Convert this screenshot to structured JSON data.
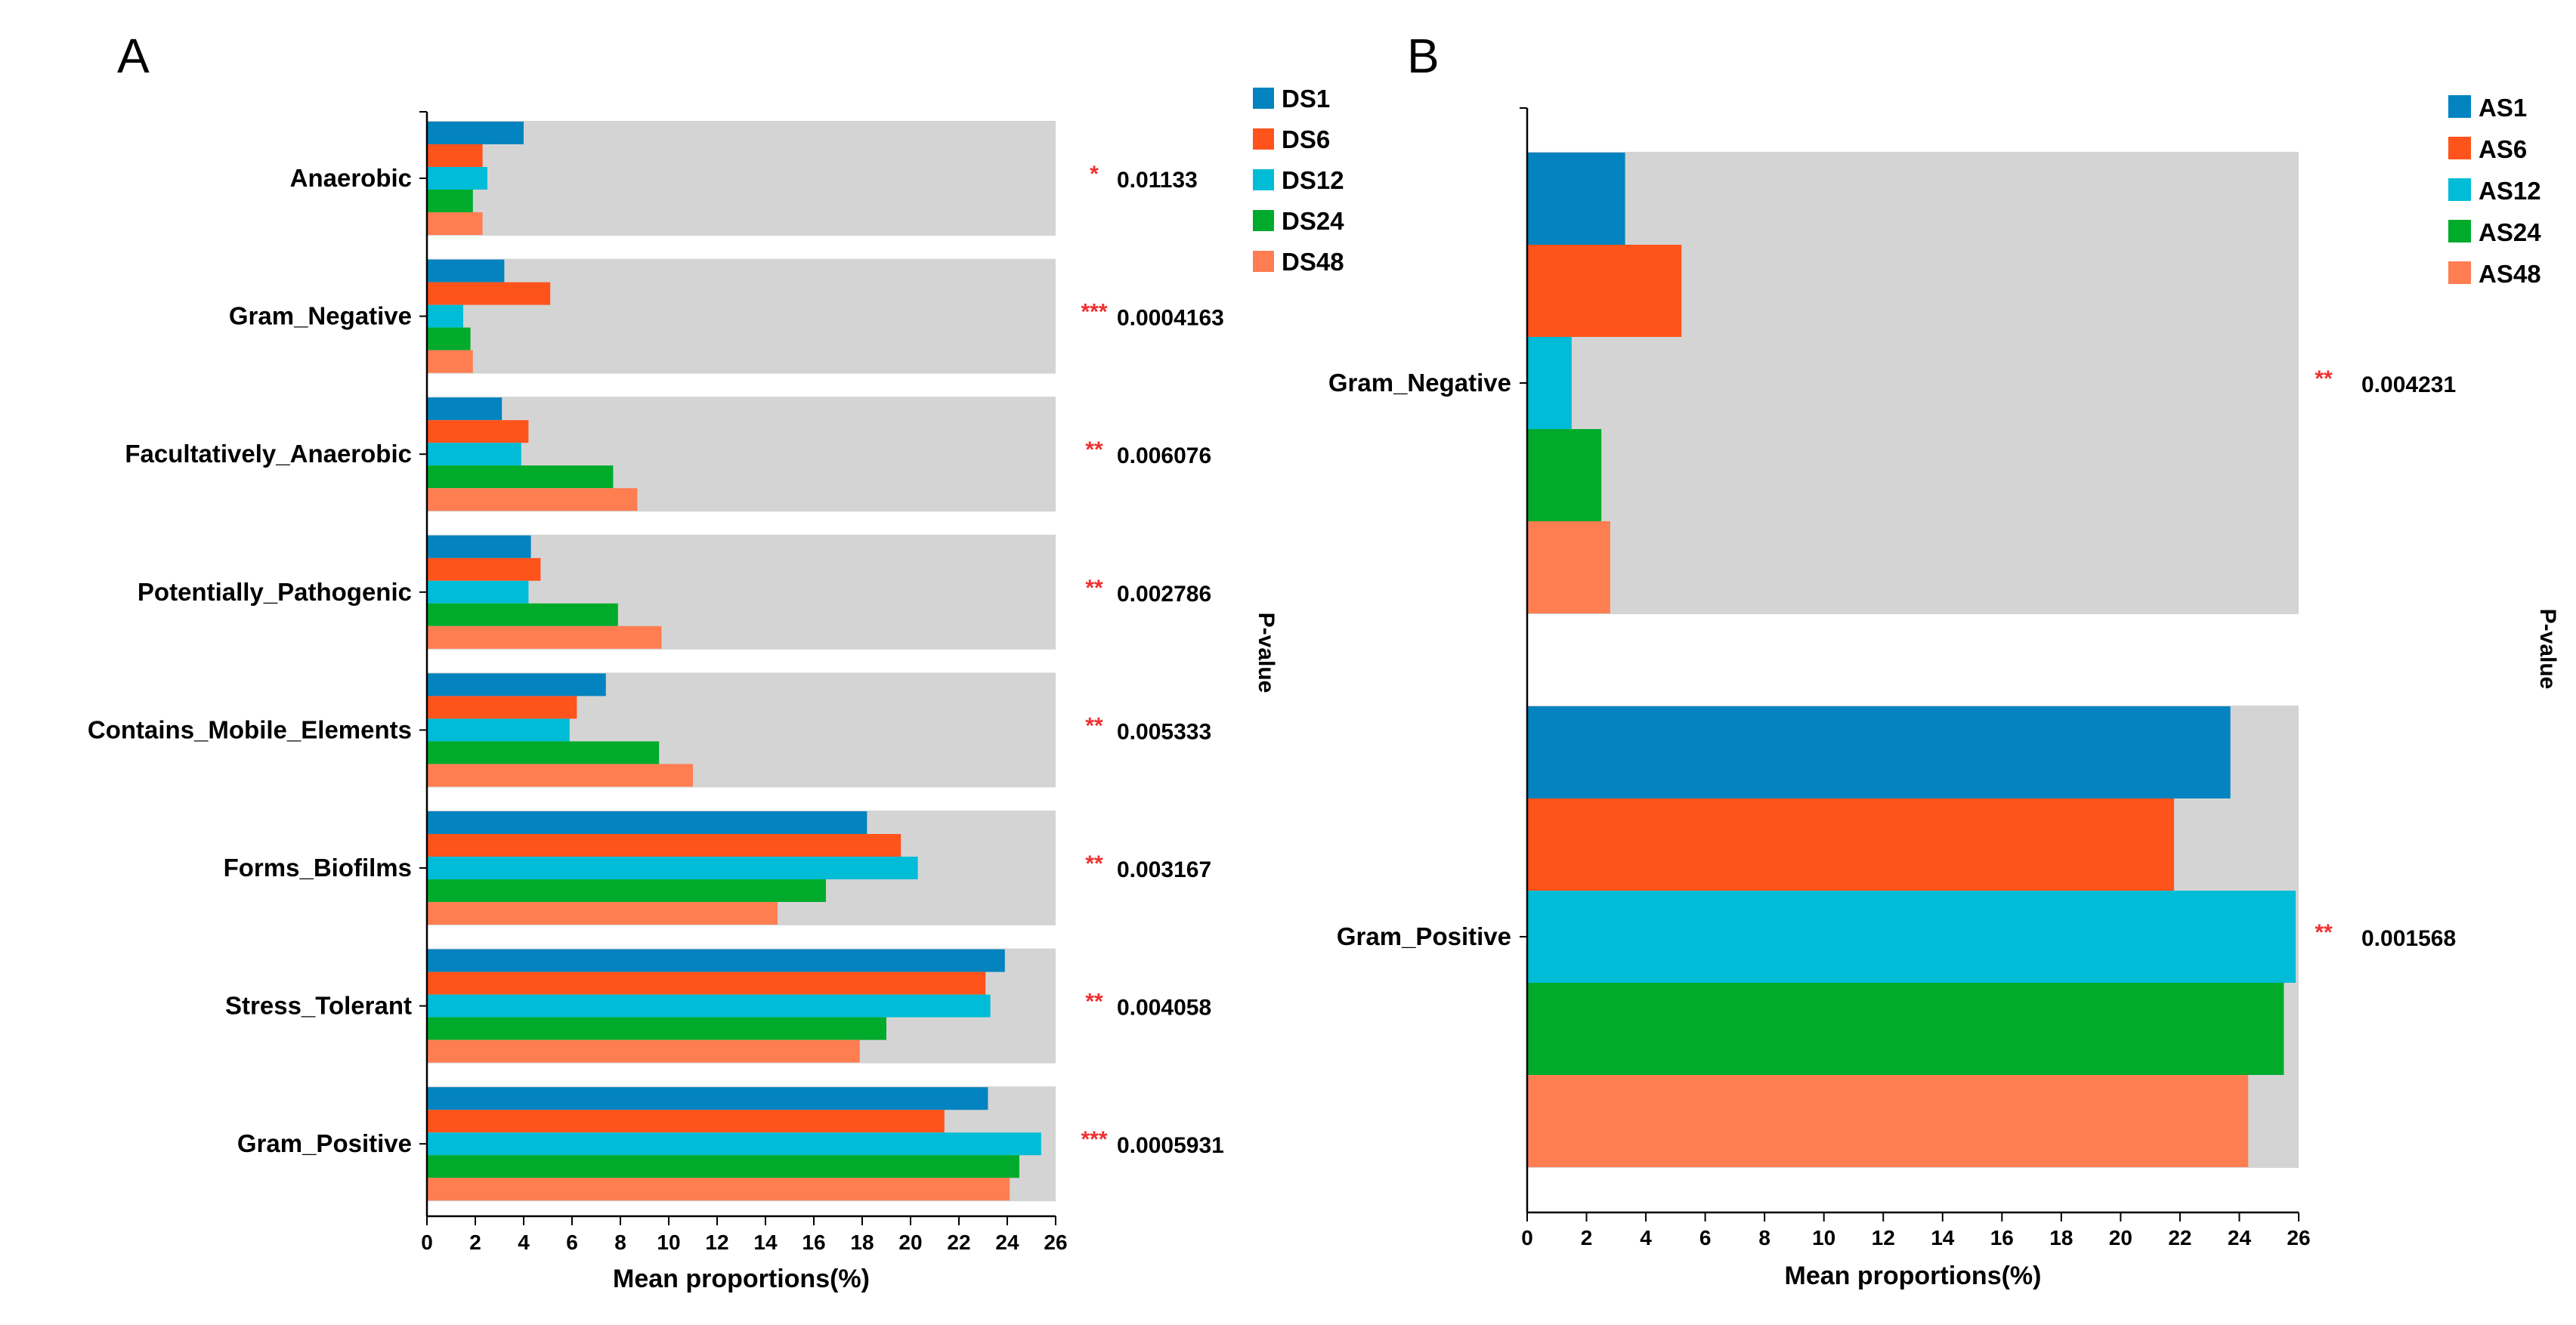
{
  "colors": {
    "series": [
      "#0383bf",
      "#fe531b",
      "#00bcd6",
      "#00ab2c",
      "#fe7e52"
    ],
    "background_band": "#d4d4d4",
    "stars": "#f03030"
  },
  "chart_data": [
    {
      "panel": "A",
      "type": "bar",
      "orientation": "horizontal",
      "xlabel": "Mean proportions(%)",
      "xlim": [
        0,
        26
      ],
      "xticks": [
        0,
        2,
        4,
        6,
        8,
        10,
        12,
        14,
        16,
        18,
        20,
        22,
        24,
        26
      ],
      "right_axis_label": "P-value",
      "legend_position": "top-right",
      "categories": [
        "Anaerobic",
        "Gram_Negative",
        "Facultatively_Anaerobic",
        "Potentially_Pathogenic",
        "Contains_Mobile_Elements",
        "Forms_Biofilms",
        "Stress_Tolerant",
        "Gram_Positive"
      ],
      "series": [
        {
          "name": "DS1",
          "values": [
            4.0,
            3.2,
            3.1,
            4.3,
            7.4,
            18.2,
            23.9,
            23.2
          ]
        },
        {
          "name": "DS6",
          "values": [
            2.3,
            5.1,
            4.2,
            4.7,
            6.2,
            19.6,
            23.1,
            21.4
          ]
        },
        {
          "name": "DS12",
          "values": [
            2.5,
            1.5,
            3.9,
            4.2,
            5.9,
            20.3,
            23.3,
            25.4
          ]
        },
        {
          "name": "DS24",
          "values": [
            1.9,
            1.8,
            7.7,
            7.9,
            9.6,
            16.5,
            19.0,
            24.5
          ]
        },
        {
          "name": "DS48",
          "values": [
            2.3,
            1.9,
            8.7,
            9.7,
            11.0,
            14.5,
            17.9,
            24.1
          ]
        }
      ],
      "significance": [
        "*",
        "***",
        "**",
        "**",
        "**",
        "**",
        "**",
        "***"
      ],
      "pvalues": [
        "0.01133",
        "0.0004163",
        "0.006076",
        "0.002786",
        "0.005333",
        "0.003167",
        "0.004058",
        "0.0005931"
      ]
    },
    {
      "panel": "B",
      "type": "bar",
      "orientation": "horizontal",
      "xlabel": "Mean proportions(%)",
      "xlim": [
        0,
        26
      ],
      "xticks": [
        0,
        2,
        4,
        6,
        8,
        10,
        12,
        14,
        16,
        18,
        20,
        22,
        24,
        26
      ],
      "right_axis_label": "P-value",
      "legend_position": "top-right",
      "categories": [
        "Gram_Negative",
        "Gram_Positive"
      ],
      "series": [
        {
          "name": "AS1",
          "values": [
            3.3,
            23.7
          ]
        },
        {
          "name": "AS6",
          "values": [
            5.2,
            21.8
          ]
        },
        {
          "name": "AS12",
          "values": [
            1.5,
            25.9
          ]
        },
        {
          "name": "AS24",
          "values": [
            2.5,
            25.5
          ]
        },
        {
          "name": "AS48",
          "values": [
            2.8,
            24.3
          ]
        }
      ],
      "significance": [
        "**",
        "**"
      ],
      "pvalues": [
        "0.004231",
        "0.001568"
      ]
    }
  ]
}
